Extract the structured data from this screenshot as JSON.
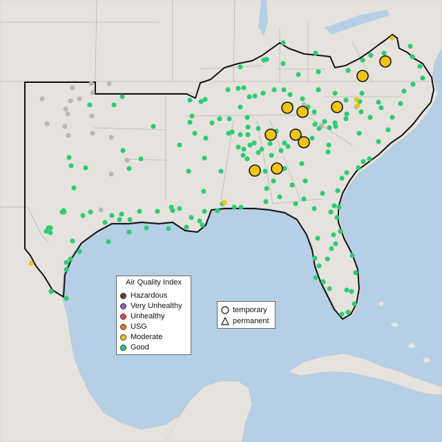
{
  "legend": {
    "title": "Air Quality Index",
    "items": [
      {
        "label": "Hazardous",
        "color": "#7e2f2f"
      },
      {
        "label": "Very Unhealthy",
        "color": "#9b59b6"
      },
      {
        "label": "Unhealthy",
        "color": "#e74c3c"
      },
      {
        "label": "USG",
        "color": "#e67e22"
      },
      {
        "label": "Moderate",
        "color": "#f1c40f"
      },
      {
        "label": "Good",
        "color": "#2ecc71"
      }
    ]
  },
  "shape_legend": {
    "temporary_label": "temporary",
    "permanent_label": "permanent"
  },
  "colors": {
    "water": "#b4cfe6",
    "land": "#e6e3df",
    "good": "#2ecc71",
    "moderate": "#f1c40f",
    "no_data": "#b8b8b8"
  }
}
